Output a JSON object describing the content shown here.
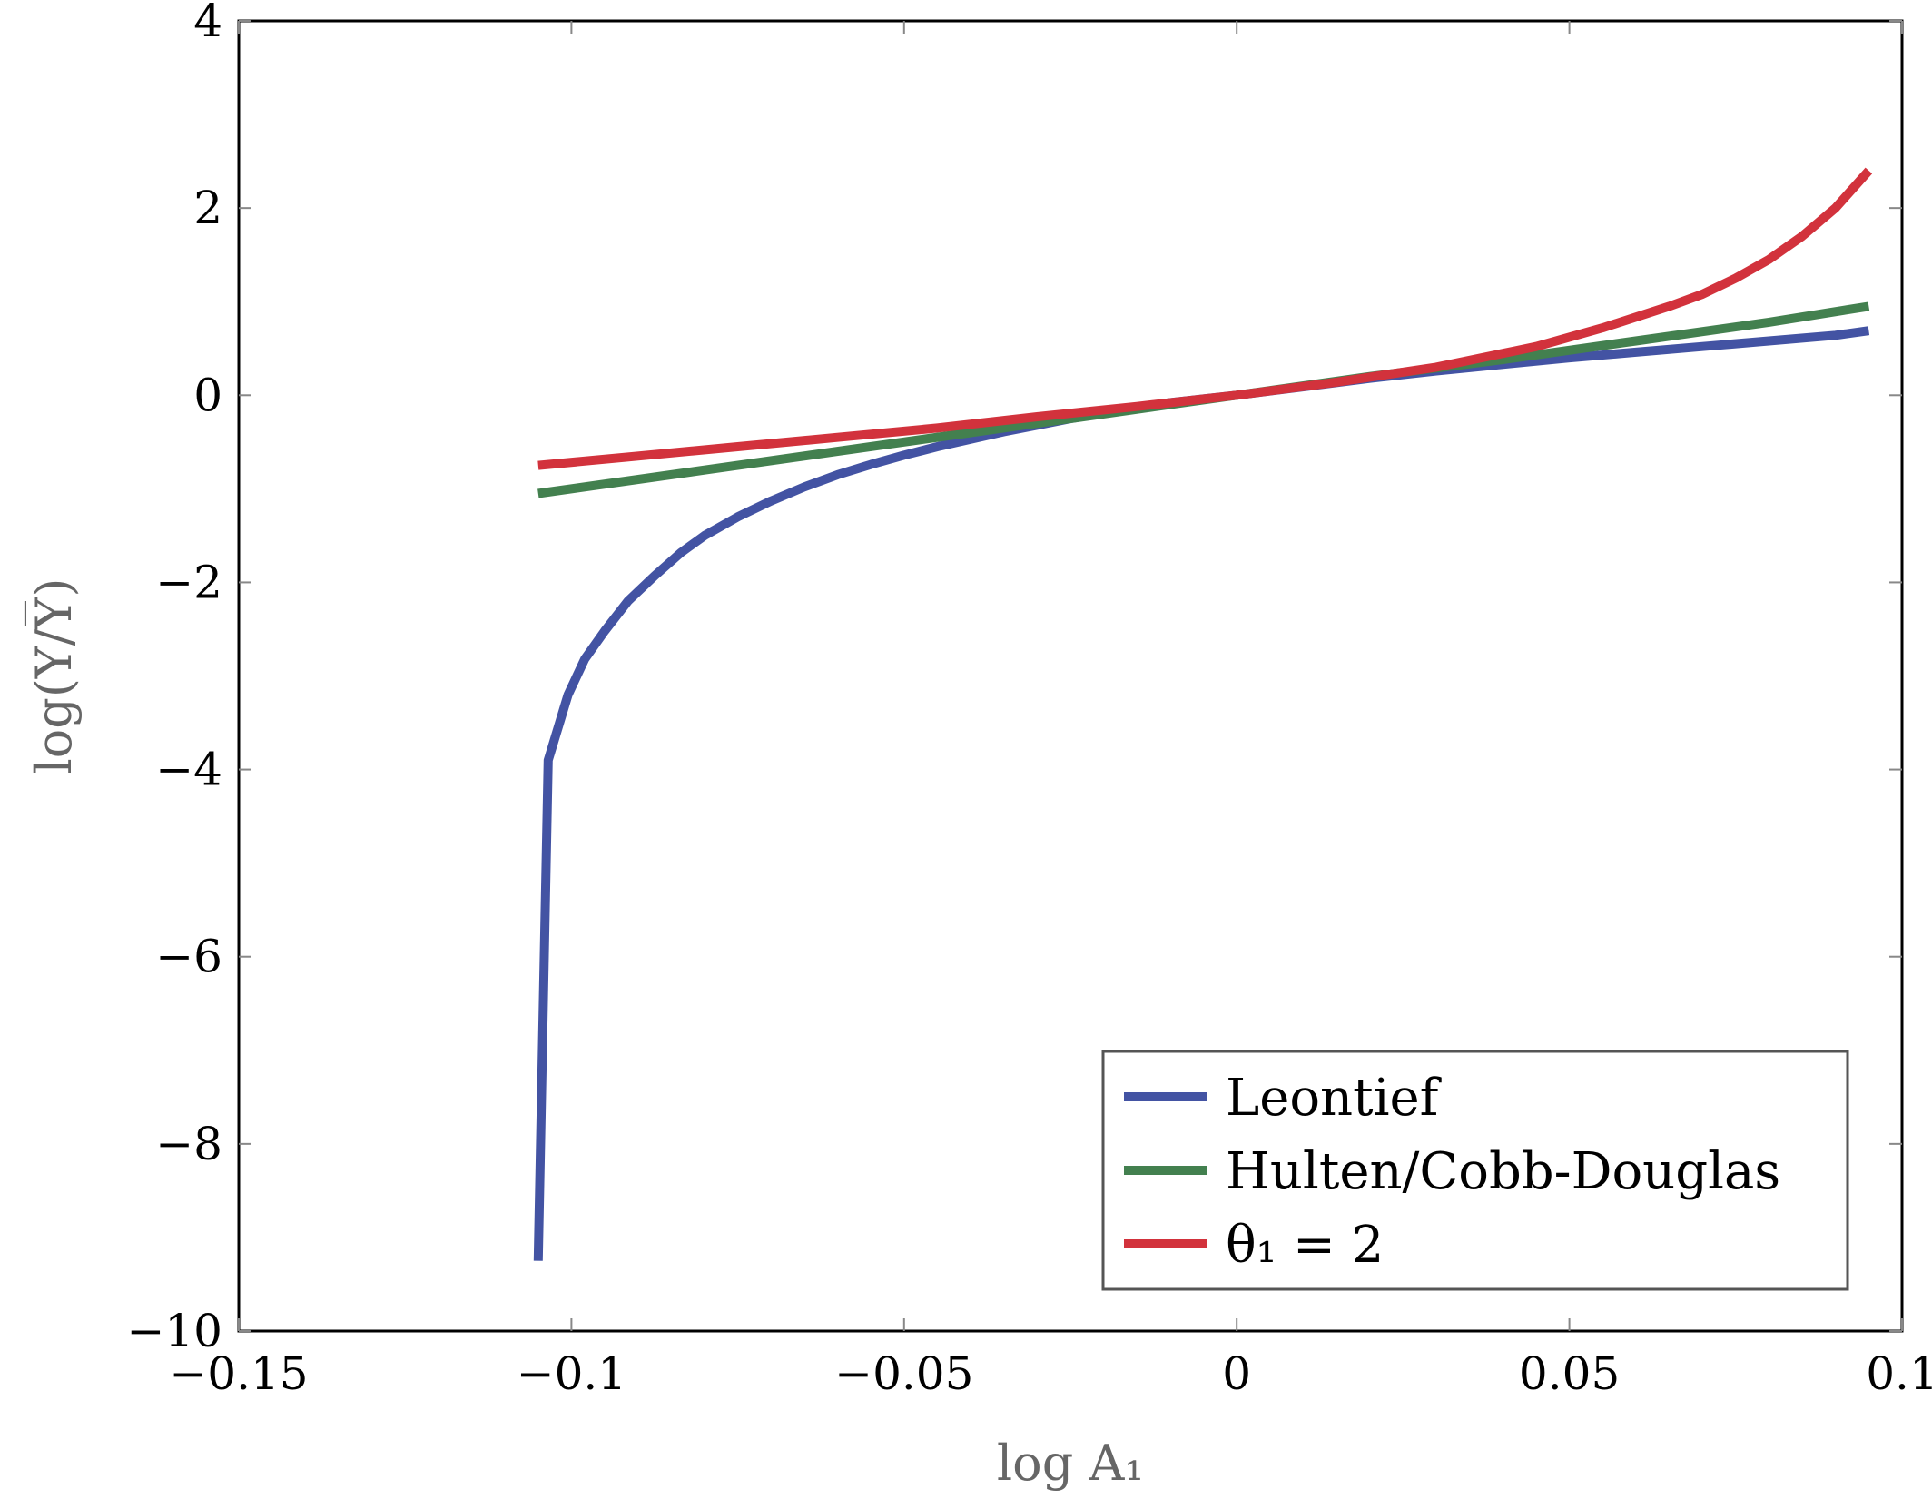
{
  "chart_data": {
    "type": "line",
    "xlabel": "log A₁",
    "ylabel": "log(Y/Y̅)",
    "xlim": [
      -0.15,
      0.1
    ],
    "ylim": [
      -10,
      4
    ],
    "xticks": [
      -0.15,
      -0.1,
      -0.05,
      0,
      0.05,
      0.1
    ],
    "xtick_labels": [
      "−0.15",
      "−0.1",
      "−0.05",
      "0",
      "0.05",
      "0.1"
    ],
    "yticks": [
      -10,
      -8,
      -6,
      -4,
      -2,
      0,
      2,
      4
    ],
    "ytick_labels": [
      "−10",
      "−8",
      "−6",
      "−4",
      "−2",
      "0",
      "2",
      "4"
    ],
    "grid": false,
    "legend_position": "bottom-right",
    "series": [
      {
        "name": "Leontief",
        "color": "#4353a3",
        "x": [
          -0.105,
          -0.1035,
          -0.1005,
          -0.098,
          -0.095,
          -0.0915,
          -0.0875,
          -0.0835,
          -0.08,
          -0.075,
          -0.07,
          -0.065,
          -0.06,
          -0.055,
          -0.05,
          -0.045,
          -0.04,
          -0.035,
          -0.03,
          -0.025,
          -0.02,
          -0.015,
          -0.01,
          -0.005,
          0,
          0.01,
          0.02,
          0.03,
          0.04,
          0.05,
          0.06,
          0.07,
          0.08,
          0.09,
          0.095
        ],
        "y": [
          -9.25,
          -3.9,
          -3.2,
          -2.82,
          -2.52,
          -2.2,
          -1.93,
          -1.68,
          -1.5,
          -1.3,
          -1.13,
          -0.98,
          -0.85,
          -0.74,
          -0.64,
          -0.55,
          -0.47,
          -0.39,
          -0.32,
          -0.25,
          -0.19,
          -0.13,
          -0.08,
          -0.04,
          0,
          0.09,
          0.18,
          0.26,
          0.33,
          0.4,
          0.46,
          0.52,
          0.58,
          0.64,
          0.69
        ]
      },
      {
        "name": "Hulten/Cobb-Douglas",
        "color": "#43804f",
        "x": [
          -0.105,
          -0.08,
          -0.06,
          -0.04,
          -0.02,
          0,
          0.02,
          0.04,
          0.06,
          0.08,
          0.095
        ],
        "y": [
          -1.05,
          -0.8,
          -0.6,
          -0.4,
          -0.2,
          0,
          0.2,
          0.38,
          0.58,
          0.78,
          0.95
        ]
      },
      {
        "name": "θ₁ = 2",
        "color": "#d2323c",
        "x": [
          -0.105,
          -0.09,
          -0.075,
          -0.06,
          -0.045,
          -0.03,
          -0.015,
          0,
          0.015,
          0.03,
          0.045,
          0.055,
          0.065,
          0.07,
          0.075,
          0.08,
          0.085,
          0.09,
          0.095
        ],
        "y": [
          -0.75,
          -0.65,
          -0.55,
          -0.45,
          -0.35,
          -0.23,
          -0.12,
          0,
          0.14,
          0.3,
          0.52,
          0.72,
          0.95,
          1.08,
          1.25,
          1.45,
          1.7,
          2.0,
          2.4
        ]
      }
    ]
  }
}
